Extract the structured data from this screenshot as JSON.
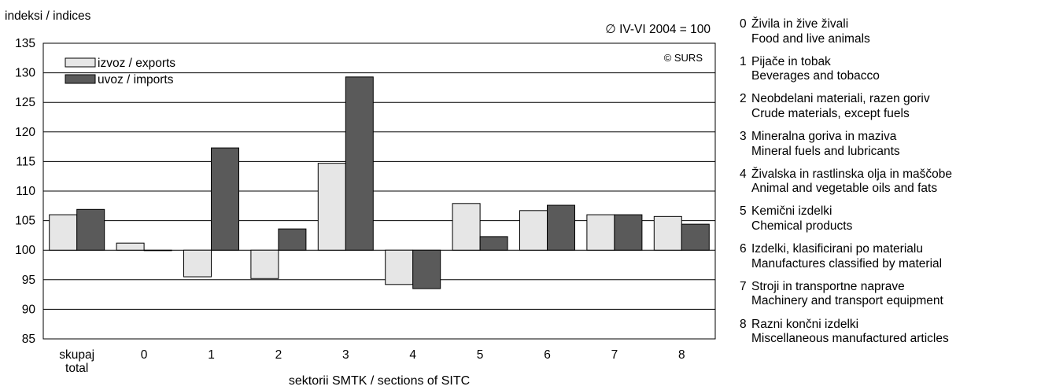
{
  "chart_data": {
    "type": "bar",
    "ylabel": "indeksi / indices",
    "xlabel": "sektorii SMTK / sections of SITC",
    "base_note": "∅ IV-VI 2004 = 100",
    "copyright": "© SURS",
    "ylim": [
      85,
      135
    ],
    "yticks": [
      85,
      90,
      95,
      100,
      105,
      110,
      115,
      120,
      125,
      130,
      135
    ],
    "grid": true,
    "legend_position": "top-left",
    "bar_baseline": 100,
    "categories": [
      [
        "skupaj",
        "total"
      ],
      [
        "0"
      ],
      [
        "1"
      ],
      [
        "2"
      ],
      [
        "3"
      ],
      [
        "4"
      ],
      [
        "5"
      ],
      [
        "6"
      ],
      [
        "7"
      ],
      [
        "8"
      ]
    ],
    "series": [
      {
        "name": "izvoz / exports",
        "color": "#e6e6e6",
        "values": [
          106.0,
          101.2,
          95.5,
          95.2,
          114.7,
          94.2,
          107.9,
          106.7,
          106.0,
          105.7
        ]
      },
      {
        "name": "uvoz / imports",
        "color": "#5a5a5a",
        "values": [
          106.9,
          100.0,
          117.3,
          103.6,
          129.3,
          93.5,
          102.3,
          107.6,
          106.0,
          104.4
        ]
      }
    ]
  },
  "section_legend": [
    {
      "code": "0",
      "sl": "Živila in žive živali",
      "en": "Food and live animals"
    },
    {
      "code": "1",
      "sl": "Pijače in tobak",
      "en": "Beverages and tobacco"
    },
    {
      "code": "2",
      "sl": "Neobdelani materiali, razen goriv",
      "en": "Crude materials, except fuels"
    },
    {
      "code": "3",
      "sl": "Mineralna goriva in maziva",
      "en": "Mineral fuels and lubricants"
    },
    {
      "code": "4",
      "sl": "Živalska in rastlinska olja in maščobe",
      "en": "Animal and vegetable oils and fats"
    },
    {
      "code": "5",
      "sl": "Kemični izdelki",
      "en": "Chemical products"
    },
    {
      "code": "6",
      "sl": "Izdelki, klasificirani po materialu",
      "en": "Manufactures classified by material"
    },
    {
      "code": "7",
      "sl": "Stroji in transportne naprave",
      "en": "Machinery and transport equipment"
    },
    {
      "code": "8",
      "sl": "Razni končni izdelki",
      "en": "Miscellaneous manufactured articles"
    }
  ]
}
